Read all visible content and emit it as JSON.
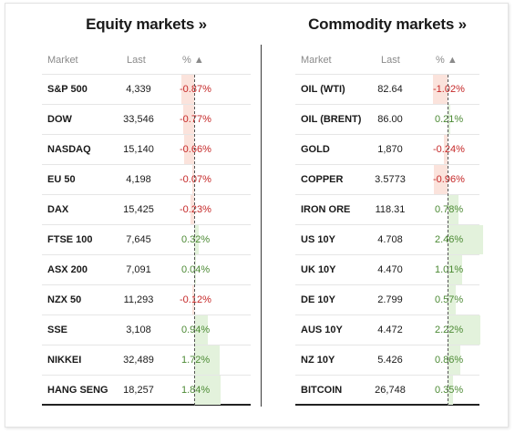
{
  "equity": {
    "title": "Equity markets »",
    "headers": {
      "market": "Market",
      "last": "Last",
      "pct": "% ▲"
    },
    "rows": [
      {
        "market": "S&P 500",
        "last": "4,339",
        "pct": "-0.87%",
        "value": -0.87
      },
      {
        "market": "DOW",
        "last": "33,546",
        "pct": "-0.77%",
        "value": -0.77
      },
      {
        "market": "NASDAQ",
        "last": "15,140",
        "pct": "-0.66%",
        "value": -0.66
      },
      {
        "market": "EU 50",
        "last": "4,198",
        "pct": "-0.07%",
        "value": -0.07
      },
      {
        "market": "DAX",
        "last": "15,425",
        "pct": "-0.23%",
        "value": -0.23
      },
      {
        "market": "FTSE 100",
        "last": "7,645",
        "pct": "0.32%",
        "value": 0.32
      },
      {
        "market": "ASX 200",
        "last": "7,091",
        "pct": "0.04%",
        "value": 0.04
      },
      {
        "market": "NZX 50",
        "last": "11,293",
        "pct": "-0.12%",
        "value": -0.12
      },
      {
        "market": "SSE",
        "last": "3,108",
        "pct": "0.94%",
        "value": 0.94
      },
      {
        "market": "NIKKEI",
        "last": "32,489",
        "pct": "1.72%",
        "value": 1.72
      },
      {
        "market": "HANG SENG",
        "last": "18,257",
        "pct": "1.84%",
        "value": 1.84
      }
    ]
  },
  "commodity": {
    "title": "Commodity markets »",
    "headers": {
      "market": "Market",
      "last": "Last",
      "pct": "% ▲"
    },
    "rows": [
      {
        "market": "OIL (WTI)",
        "last": "82.64",
        "pct": "-1.02%",
        "value": -1.02
      },
      {
        "market": "OIL (BRENT)",
        "last": "86.00",
        "pct": "0.21%",
        "value": 0.21
      },
      {
        "market": "GOLD",
        "last": "1,870",
        "pct": "-0.24%",
        "value": -0.24
      },
      {
        "market": "COPPER",
        "last": "3.5773",
        "pct": "-0.96%",
        "value": -0.96
      },
      {
        "market": "IRON ORE",
        "last": "118.31",
        "pct": "0.78%",
        "value": 0.78
      },
      {
        "market": "US 10Y",
        "last": "4.708",
        "pct": "2.46%",
        "value": 2.46
      },
      {
        "market": "UK 10Y",
        "last": "4.470",
        "pct": "1.01%",
        "value": 1.01
      },
      {
        "market": "DE 10Y",
        "last": "2.799",
        "pct": "0.57%",
        "value": 0.57
      },
      {
        "market": "AUS 10Y",
        "last": "4.472",
        "pct": "2.22%",
        "value": 2.22
      },
      {
        "market": "NZ 10Y",
        "last": "5.426",
        "pct": "0.86%",
        "value": 0.86
      },
      {
        "market": "BITCOIN",
        "last": "26,748",
        "pct": "0.35%",
        "value": 0.35
      }
    ]
  },
  "colors": {
    "negative": "#c62828",
    "positive": "#4c8a34",
    "neg_bar": "#fbe3dc",
    "pos_bar": "#e3f2dc"
  }
}
